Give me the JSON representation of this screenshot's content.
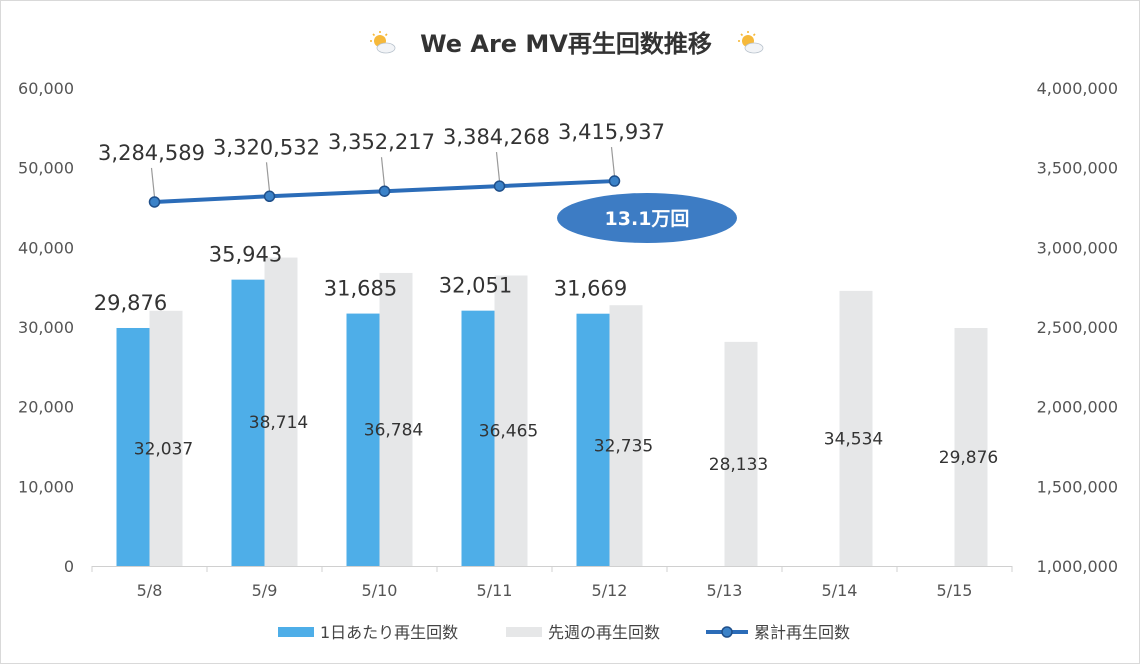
{
  "chart_data": {
    "type": "bar",
    "title": "We Are MV再生回数推移",
    "title_icon": "sun-behind-cloud-icon",
    "categories": [
      "5/8",
      "5/9",
      "5/10",
      "5/11",
      "5/12",
      "5/13",
      "5/14",
      "5/15"
    ],
    "series": [
      {
        "name": "1日あたり再生回数",
        "type": "bar",
        "axis": "left",
        "color": "#4eaee8",
        "values": [
          29876,
          35943,
          31685,
          32051,
          31669,
          null,
          null,
          null
        ]
      },
      {
        "name": "先週の再生回数",
        "type": "bar",
        "axis": "left",
        "color": "#e6e7e8",
        "values": [
          32037,
          38714,
          36784,
          36465,
          32735,
          28133,
          34534,
          29876
        ]
      },
      {
        "name": "累計再生回数",
        "type": "line",
        "axis": "right",
        "color": "#2b6cb8",
        "values": [
          3284589,
          3320532,
          3352217,
          3384268,
          3415937,
          null,
          null,
          null
        ]
      }
    ],
    "labels": {
      "daily": [
        "29,876",
        "35,943",
        "31,685",
        "32,051",
        "31,669"
      ],
      "last_week": [
        "32,037",
        "38,714",
        "36,784",
        "36,465",
        "32,735",
        "28,133",
        "34,534",
        "29,876"
      ],
      "cumulative": [
        "3,284,589",
        "3,320,532",
        "3,352,217",
        "3,384,268",
        "3,415,937"
      ]
    },
    "left_axis": {
      "min": 0,
      "max": 60000,
      "ticks": [
        "0",
        "10,000",
        "20,000",
        "30,000",
        "40,000",
        "50,000",
        "60,000"
      ]
    },
    "right_axis": {
      "min": 1000000,
      "max": 4000000,
      "ticks": [
        "1,000,000",
        "1,500,000",
        "2,000,000",
        "2,500,000",
        "3,000,000",
        "3,500,000",
        "4,000,000"
      ]
    },
    "annotation": {
      "text": "13.1万回",
      "color": "#3d7cc4"
    },
    "legend_position": "bottom",
    "grid": false
  }
}
